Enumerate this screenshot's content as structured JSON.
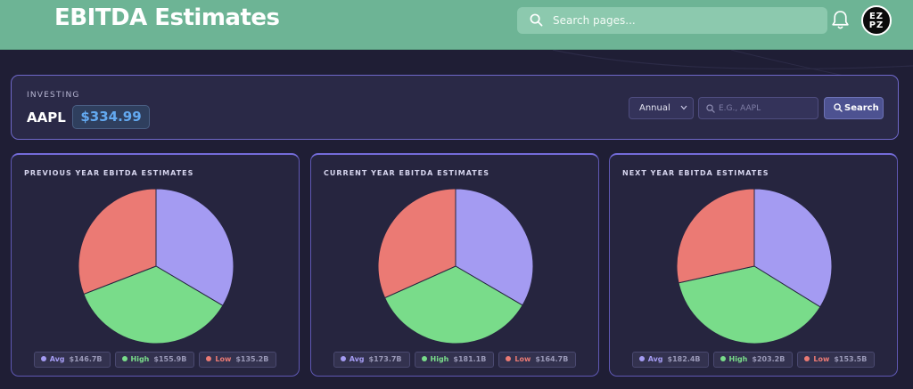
{
  "header": {
    "title": "EBITDA Estimates",
    "search_placeholder": "Search pages...",
    "avatar_text": "EZ PZ"
  },
  "controls": {
    "section_label": "INVESTING",
    "ticker": "AAPL",
    "price": "$334.99",
    "period_select": "Annual",
    "ticker_placeholder": "E.G., AAPL",
    "search_button": "Search"
  },
  "colors": {
    "avg": "#a49bf2",
    "high": "#79dc8a",
    "low": "#eb7a74",
    "accent": "#6db495"
  },
  "cards": [
    {
      "title": "PREVIOUS YEAR EBITDA ESTIMATES",
      "legend": [
        {
          "name": "Avg",
          "value": "$146.7B"
        },
        {
          "name": "High",
          "value": "$155.9B"
        },
        {
          "name": "Low",
          "value": "$135.2B"
        }
      ]
    },
    {
      "title": "CURRENT YEAR EBITDA ESTIMATES",
      "legend": [
        {
          "name": "Avg",
          "value": "$173.7B"
        },
        {
          "name": "High",
          "value": "$181.1B"
        },
        {
          "name": "Low",
          "value": "$164.7B"
        }
      ]
    },
    {
      "title": "NEXT YEAR EBITDA ESTIMATES",
      "legend": [
        {
          "name": "Avg",
          "value": "$182.4B"
        },
        {
          "name": "High",
          "value": "$203.2B"
        },
        {
          "name": "Low",
          "value": "$153.5B"
        }
      ]
    }
  ],
  "chart_data": [
    {
      "type": "pie",
      "categories": [
        "Avg",
        "High",
        "Low"
      ],
      "values": [
        146.7,
        155.9,
        135.2
      ],
      "colors": [
        "#a49bf2",
        "#79dc8a",
        "#eb7a74"
      ]
    },
    {
      "type": "pie",
      "categories": [
        "Avg",
        "High",
        "Low"
      ],
      "values": [
        173.7,
        181.1,
        164.7
      ],
      "colors": [
        "#a49bf2",
        "#79dc8a",
        "#eb7a74"
      ]
    },
    {
      "type": "pie",
      "categories": [
        "Avg",
        "High",
        "Low"
      ],
      "values": [
        182.4,
        203.2,
        153.5
      ],
      "colors": [
        "#a49bf2",
        "#79dc8a",
        "#eb7a74"
      ]
    }
  ]
}
